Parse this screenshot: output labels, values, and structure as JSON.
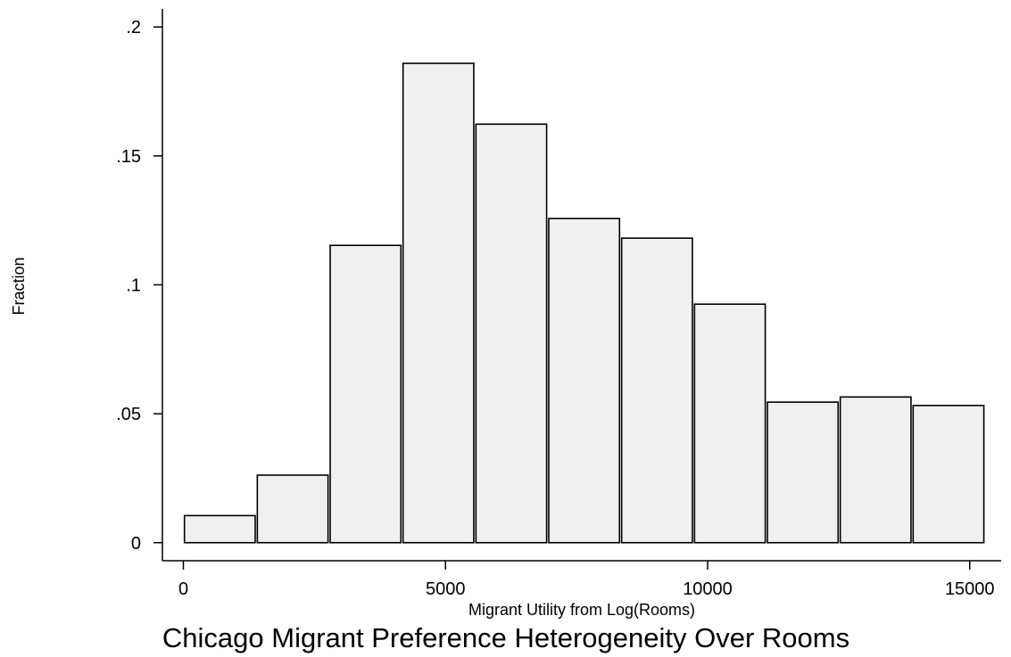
{
  "chart_data": {
    "type": "bar",
    "title": "Chicago Migrant Preference Heterogeneity Over Rooms",
    "xlabel": "Migrant Utility from Log(Rooms)",
    "ylabel": "Fraction",
    "xlim": [
      -400,
      15600
    ],
    "ylim": [
      -0.007,
      0.207
    ],
    "x_ticks": [
      0,
      5000,
      10000,
      15000
    ],
    "x_tick_labels": [
      "0",
      "5000",
      "10000",
      "15000"
    ],
    "y_ticks": [
      0,
      0.05,
      0.1,
      0.15,
      0.2
    ],
    "y_tick_labels": [
      "0",
      ".05",
      ".1",
      ".15",
      ".2"
    ],
    "bin_start": 0,
    "bin_width": 1390,
    "values": [
      0.0105,
      0.0262,
      0.1153,
      0.1859,
      0.1623,
      0.1257,
      0.1181,
      0.0925,
      0.0545,
      0.0565,
      0.0532
    ],
    "bar_color": "#f0f0f0",
    "edge_color": "#000000",
    "grid": false
  }
}
